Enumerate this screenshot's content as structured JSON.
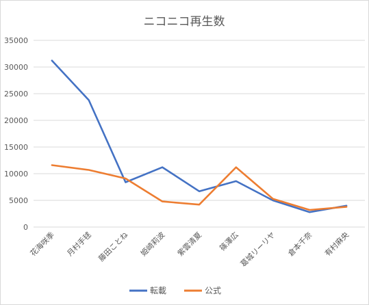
{
  "chart_data": {
    "type": "line",
    "title": "ニコニコ再生数",
    "categories": [
      "花海咲季",
      "月村手毬",
      "藤田ことね",
      "姫崎莉波",
      "紫雲清夏",
      "篠澤広",
      "葛城リーリヤ",
      "倉本千奈",
      "有村麻央"
    ],
    "series": [
      {
        "name": "転載",
        "color": "#4472c4",
        "values": [
          31200,
          23800,
          8400,
          11200,
          6700,
          8600,
          5000,
          2800,
          4000
        ]
      },
      {
        "name": "公式",
        "color": "#ed7d31",
        "values": [
          11600,
          10700,
          9100,
          4800,
          4200,
          11200,
          5300,
          3200,
          3800
        ]
      }
    ],
    "ylim": [
      0,
      35000
    ],
    "yticks": [
      0,
      5000,
      10000,
      15000,
      20000,
      25000,
      30000,
      35000
    ],
    "grid": true,
    "legend_position": "bottom",
    "xlabel": "",
    "ylabel": ""
  }
}
